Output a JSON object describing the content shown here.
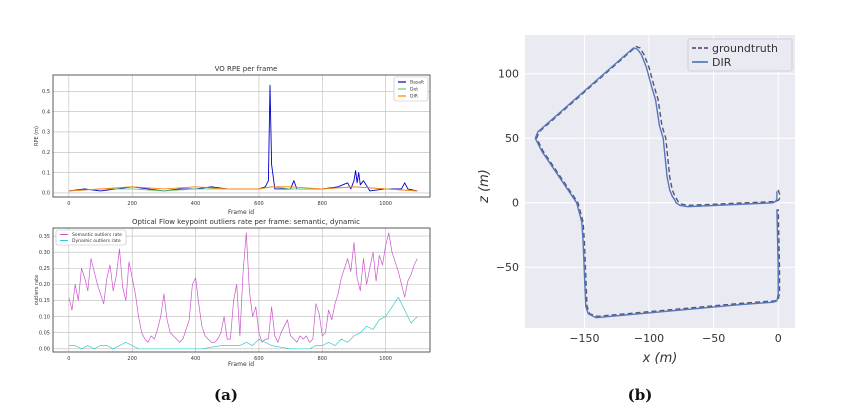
{
  "chart_data": [
    {
      "type": "line",
      "title": "VO RPE per frame",
      "xlabel": "Frame id",
      "ylabel": "RPE (m)",
      "xlim": [
        -50,
        1140
      ],
      "ylim": [
        -0.02,
        0.58
      ],
      "xticks": [
        0,
        200,
        400,
        600,
        800,
        1000
      ],
      "yticks": [
        0.0,
        0.1,
        0.2,
        0.3,
        0.4,
        0.5
      ],
      "xtick_labels": [
        "0",
        "200",
        "400",
        "600",
        "800",
        "1000"
      ],
      "ytick_labels": [
        "0.0",
        "0.1",
        "0.2",
        "0.3",
        "0.4",
        "0.5"
      ],
      "grid": true,
      "legend": "top-right",
      "series": [
        {
          "name": "Basalt",
          "color": "#0000cc",
          "x": [
            0,
            50,
            100,
            150,
            200,
            250,
            300,
            350,
            400,
            450,
            500,
            550,
            600,
            620,
            630,
            635,
            640,
            650,
            700,
            710,
            720,
            800,
            850,
            880,
            890,
            900,
            905,
            910,
            915,
            920,
            930,
            950,
            1000,
            1050,
            1060,
            1070,
            1100
          ],
          "y": [
            0.01,
            0.02,
            0.01,
            0.02,
            0.03,
            0.02,
            0.01,
            0.02,
            0.02,
            0.03,
            0.02,
            0.02,
            0.02,
            0.03,
            0.06,
            0.53,
            0.14,
            0.02,
            0.02,
            0.06,
            0.02,
            0.02,
            0.03,
            0.05,
            0.02,
            0.06,
            0.11,
            0.05,
            0.1,
            0.04,
            0.06,
            0.01,
            0.02,
            0.02,
            0.05,
            0.02,
            0.01
          ]
        },
        {
          "name": "Det",
          "color": "#66cc66",
          "x": [
            0,
            100,
            200,
            300,
            400,
            500,
            600,
            640,
            700,
            800,
            900,
            1000,
            1100
          ],
          "y": [
            0.01,
            0.02,
            0.02,
            0.01,
            0.02,
            0.02,
            0.02,
            0.03,
            0.02,
            0.02,
            0.03,
            0.02,
            0.01
          ]
        },
        {
          "name": "DIR",
          "color": "#ff7f0e",
          "x": [
            0,
            100,
            200,
            300,
            400,
            500,
            600,
            640,
            700,
            800,
            900,
            1000,
            1100
          ],
          "y": [
            0.01,
            0.02,
            0.03,
            0.02,
            0.03,
            0.02,
            0.02,
            0.03,
            0.03,
            0.02,
            0.03,
            0.02,
            0.01
          ]
        }
      ]
    },
    {
      "type": "line",
      "title": "Optical Flow keypoint outliers rate per frame: semantic, dynamic",
      "xlabel": "Frame id",
      "ylabel": "outliers rate",
      "xlim": [
        -50,
        1140
      ],
      "ylim": [
        -0.01,
        0.375
      ],
      "xticks": [
        0,
        200,
        400,
        600,
        800,
        1000
      ],
      "yticks": [
        0.0,
        0.05,
        0.1,
        0.15,
        0.2,
        0.25,
        0.3,
        0.35
      ],
      "xtick_labels": [
        "0",
        "200",
        "400",
        "600",
        "800",
        "1000"
      ],
      "ytick_labels": [
        "0.00",
        "0.05",
        "0.10",
        "0.15",
        "0.20",
        "0.25",
        "0.30",
        "0.35"
      ],
      "grid": true,
      "legend": "top-left",
      "series": [
        {
          "name": "Semantic outliers rate",
          "color": "#cc55cc",
          "x": [
            0,
            10,
            20,
            30,
            40,
            50,
            60,
            70,
            80,
            90,
            100,
            110,
            120,
            130,
            140,
            150,
            160,
            170,
            180,
            190,
            200,
            210,
            220,
            230,
            240,
            250,
            260,
            270,
            280,
            290,
            300,
            310,
            320,
            330,
            340,
            350,
            360,
            370,
            380,
            390,
            400,
            410,
            420,
            430,
            440,
            450,
            460,
            470,
            480,
            490,
            500,
            510,
            520,
            530,
            540,
            550,
            560,
            570,
            580,
            590,
            600,
            610,
            620,
            630,
            640,
            650,
            660,
            670,
            680,
            690,
            700,
            710,
            720,
            730,
            740,
            750,
            760,
            770,
            780,
            790,
            800,
            810,
            820,
            830,
            840,
            850,
            860,
            870,
            880,
            890,
            900,
            910,
            920,
            930,
            940,
            950,
            960,
            970,
            980,
            990,
            1000,
            1010,
            1020,
            1030,
            1040,
            1050,
            1060,
            1070,
            1080,
            1090,
            1100
          ],
          "y": [
            0.16,
            0.12,
            0.2,
            0.15,
            0.25,
            0.22,
            0.18,
            0.28,
            0.24,
            0.2,
            0.17,
            0.14,
            0.22,
            0.26,
            0.18,
            0.23,
            0.31,
            0.19,
            0.15,
            0.27,
            0.22,
            0.17,
            0.1,
            0.05,
            0.03,
            0.02,
            0.04,
            0.03,
            0.06,
            0.1,
            0.17,
            0.09,
            0.05,
            0.04,
            0.03,
            0.02,
            0.03,
            0.06,
            0.09,
            0.2,
            0.22,
            0.14,
            0.07,
            0.04,
            0.03,
            0.02,
            0.02,
            0.03,
            0.05,
            0.1,
            0.03,
            0.03,
            0.15,
            0.2,
            0.04,
            0.24,
            0.36,
            0.18,
            0.1,
            0.13,
            0.05,
            0.02,
            0.03,
            0.03,
            0.13,
            0.04,
            0.02,
            0.05,
            0.07,
            0.09,
            0.04,
            0.03,
            0.02,
            0.04,
            0.03,
            0.04,
            0.02,
            0.03,
            0.14,
            0.11,
            0.04,
            0.05,
            0.12,
            0.09,
            0.14,
            0.17,
            0.22,
            0.25,
            0.28,
            0.24,
            0.33,
            0.22,
            0.18,
            0.28,
            0.2,
            0.25,
            0.3,
            0.21,
            0.29,
            0.26,
            0.32,
            0.36,
            0.3,
            0.27,
            0.24,
            0.2,
            0.16,
            0.21,
            0.23,
            0.26,
            0.28
          ]
        },
        {
          "name": "Dynamic outliers rate",
          "color": "#33cccc",
          "x": [
            0,
            20,
            40,
            60,
            80,
            100,
            120,
            140,
            160,
            180,
            200,
            220,
            260,
            300,
            360,
            420,
            480,
            540,
            560,
            580,
            600,
            620,
            640,
            700,
            760,
            780,
            800,
            820,
            840,
            860,
            880,
            900,
            920,
            940,
            960,
            980,
            1000,
            1020,
            1040,
            1060,
            1080,
            1100
          ],
          "y": [
            0.01,
            0.01,
            0.0,
            0.01,
            0.0,
            0.01,
            0.01,
            0.0,
            0.01,
            0.02,
            0.01,
            0.0,
            0.0,
            0.0,
            0.0,
            0.0,
            0.01,
            0.01,
            0.02,
            0.01,
            0.03,
            0.02,
            0.01,
            0.0,
            0.0,
            0.01,
            0.01,
            0.02,
            0.01,
            0.03,
            0.02,
            0.04,
            0.05,
            0.07,
            0.06,
            0.09,
            0.1,
            0.13,
            0.16,
            0.12,
            0.08,
            0.1
          ]
        }
      ]
    },
    {
      "type": "line",
      "xlabel": "x (m)",
      "ylabel": "z (m)",
      "xlim": [
        -196,
        13
      ],
      "ylim": [
        -97,
        130
      ],
      "xticks": [
        -150,
        -100,
        -50,
        0
      ],
      "yticks": [
        -50,
        0,
        50,
        100
      ],
      "xtick_labels": [
        "−150",
        "−100",
        "−50",
        "0"
      ],
      "ytick_labels": [
        "−50",
        "0",
        "50",
        "100"
      ],
      "grid": true,
      "legend": "top-right",
      "series": [
        {
          "name": "groundtruth",
          "color": "#555577",
          "dashed": true,
          "x": [
            0,
            1,
            1,
            1,
            0,
            -2,
            -70,
            -75,
            -77,
            -78,
            -80,
            -82,
            -84,
            -87,
            -90,
            -93,
            -96,
            -100,
            -104,
            -107,
            -110,
            -185,
            -187,
            -182,
            -155,
            -151,
            -150,
            -148,
            -146,
            -140,
            -30,
            -3,
            0,
            1,
            1,
            0
          ],
          "z": [
            10,
            7,
            5,
            3,
            2,
            1,
            -2,
            -1,
            0,
            2,
            5,
            10,
            20,
            50,
            60,
            80,
            90,
            105,
            115,
            120,
            121,
            55,
            50,
            40,
            0,
            -15,
            -30,
            -80,
            -86,
            -88,
            -78,
            -76,
            -75,
            -70,
            -50,
            -5
          ]
        },
        {
          "name": "DIR",
          "color": "#5577bb",
          "x": [
            -1,
            -1,
            -1,
            -2,
            -4,
            -70,
            -76,
            -79,
            -80,
            -82,
            -84,
            -86,
            -89,
            -92,
            -95,
            -98,
            -102,
            -106,
            -109,
            -112,
            -186,
            -188,
            -183,
            -156,
            -152,
            -151,
            -149,
            -147,
            -141,
            -31,
            -4,
            -1,
            0,
            0,
            -1
          ],
          "z": [
            9,
            6,
            3,
            1,
            0,
            -3,
            -2,
            0,
            2,
            5,
            10,
            20,
            50,
            60,
            80,
            90,
            105,
            115,
            119,
            120,
            55,
            50,
            40,
            0,
            -15,
            -30,
            -80,
            -86,
            -89,
            -79,
            -77,
            -76,
            -71,
            -50,
            -5
          ]
        }
      ]
    }
  ],
  "captions": {
    "a": "(a)",
    "b": "(b)"
  }
}
